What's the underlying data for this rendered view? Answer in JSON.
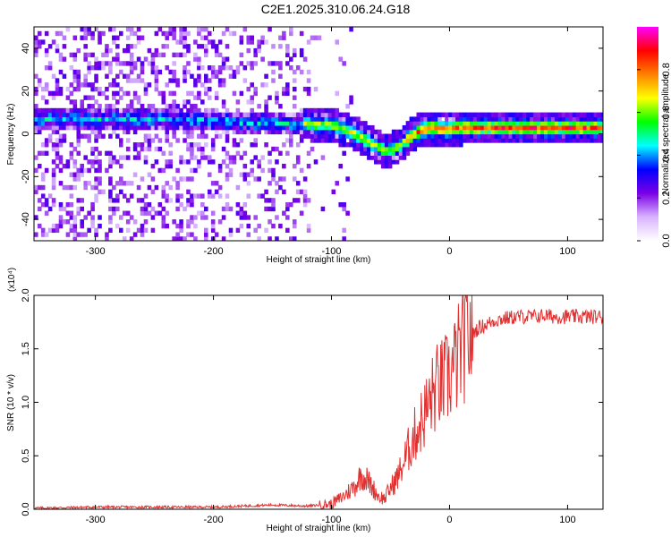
{
  "title": "C2E1.2025.310.06.24.G18",
  "chart_data": [
    {
      "type": "heatmap",
      "xlabel": "Height of straight line (km)",
      "ylabel": "Frequency (Hz)",
      "xlim": [
        -352,
        130
      ],
      "ylim": [
        -50,
        50
      ],
      "xticks": [
        -300,
        -200,
        -100,
        0,
        100
      ],
      "yticks": [
        -40,
        -20,
        0,
        20,
        40
      ],
      "colorbar": {
        "label": "Normalized spectral amplitude",
        "range": [
          0,
          1
        ],
        "ticks": [
          0.0,
          0.2,
          0.4,
          0.6,
          0.8
        ],
        "colors": [
          "#ffffff",
          "#d9b3ff",
          "#7a00e6",
          "#0000ff",
          "#00ffff",
          "#00ff00",
          "#ffff00",
          "#ff8000",
          "#ff0000",
          "#ff00ff"
        ]
      },
      "ridge": {
        "x": [
          -350,
          -300,
          -250,
          -200,
          -150,
          -120,
          -100,
          -80,
          -65,
          -55,
          -45,
          -35,
          -25,
          -15,
          -5,
          10,
          50,
          100,
          130
        ],
        "y": [
          6,
          6,
          6,
          5,
          4,
          4,
          3,
          -1,
          -6,
          -9,
          -7,
          -2,
          1,
          2,
          1,
          2,
          2,
          2,
          2
        ]
      }
    },
    {
      "type": "line",
      "xlabel": "Height of straight line (km)",
      "ylabel": "SNR (10 * v/v)",
      "scale_note": "(x10⁴)",
      "xlim": [
        -352,
        130
      ],
      "ylim": [
        0,
        2.0
      ],
      "xticks": [
        -300,
        -200,
        -100,
        0,
        100
      ],
      "yticks": [
        0.0,
        0.5,
        1.0,
        1.5,
        2.0
      ],
      "color": "#e03030",
      "series": [
        {
          "x": [
            -352,
            -300,
            -250,
            -200,
            -150,
            -120,
            -100,
            -90,
            -80,
            -75,
            -70,
            -65,
            -60,
            -55,
            -50,
            -45,
            -40,
            -35,
            -30,
            -25,
            -20,
            -15,
            -10,
            -5,
            0,
            5,
            10,
            15,
            20,
            25,
            30,
            35,
            40,
            50,
            60,
            70,
            80,
            90,
            100,
            110,
            120,
            130
          ],
          "y": [
            0.01,
            0.02,
            0.02,
            0.02,
            0.04,
            0.03,
            0.05,
            0.12,
            0.22,
            0.32,
            0.28,
            0.2,
            0.12,
            0.1,
            0.2,
            0.28,
            0.4,
            0.55,
            0.68,
            0.8,
            0.92,
            1.05,
            1.15,
            1.18,
            1.25,
            1.35,
            1.5,
            1.6,
            1.65,
            1.7,
            1.72,
            1.75,
            1.77,
            1.79,
            1.8,
            1.8,
            1.81,
            1.8,
            1.8,
            1.8,
            1.8,
            1.8
          ]
        }
      ]
    }
  ]
}
